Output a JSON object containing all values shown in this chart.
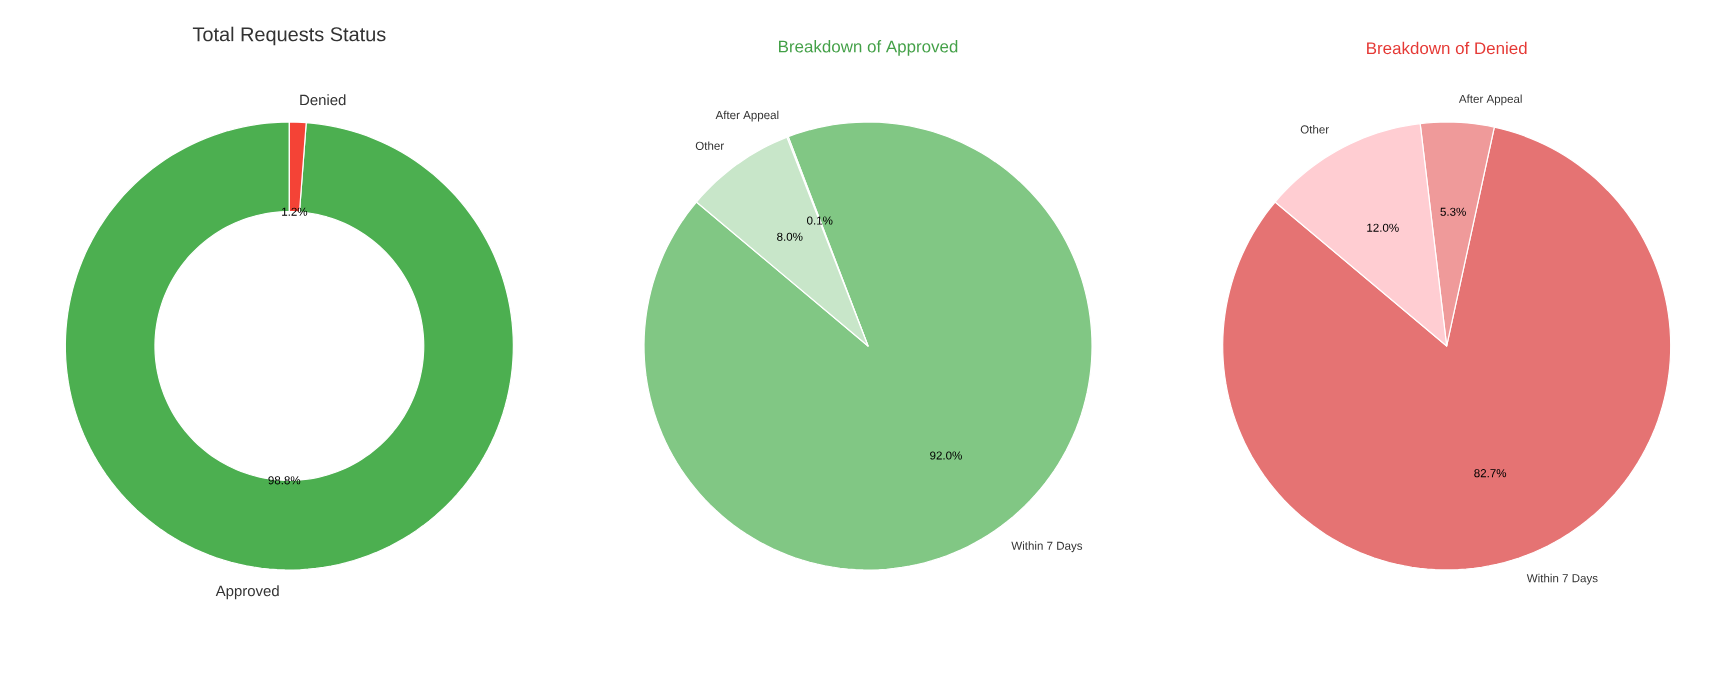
{
  "chart_data": [
    {
      "type": "donut",
      "title": "Total Requests Status",
      "categories": [
        "Approved",
        "Denied"
      ],
      "values": [
        98.8,
        1.2
      ],
      "colors": [
        "#4caf50",
        "#f44336"
      ],
      "value_labels": [
        "98.8%",
        "1.2%"
      ]
    },
    {
      "type": "pie",
      "title": "Breakdown of Approved",
      "categories": [
        "Within 7 Days",
        "After Appeal",
        "Other"
      ],
      "values": [
        92.0,
        0.1,
        8.0
      ],
      "colors": [
        "#81c784",
        "#a5d6a7",
        "#c8e6c9"
      ],
      "value_labels": [
        "92.0%",
        "0.1%",
        "8.0%"
      ]
    },
    {
      "type": "pie",
      "title": "Breakdown of Denied",
      "categories": [
        "Within 7 Days",
        "After Appeal",
        "Other"
      ],
      "values": [
        82.7,
        5.3,
        12.0
      ],
      "colors": [
        "#e57373",
        "#ef9a9a",
        "#ffcdd2"
      ],
      "value_labels": [
        "82.7%",
        "5.3%",
        "12.0%"
      ]
    }
  ]
}
